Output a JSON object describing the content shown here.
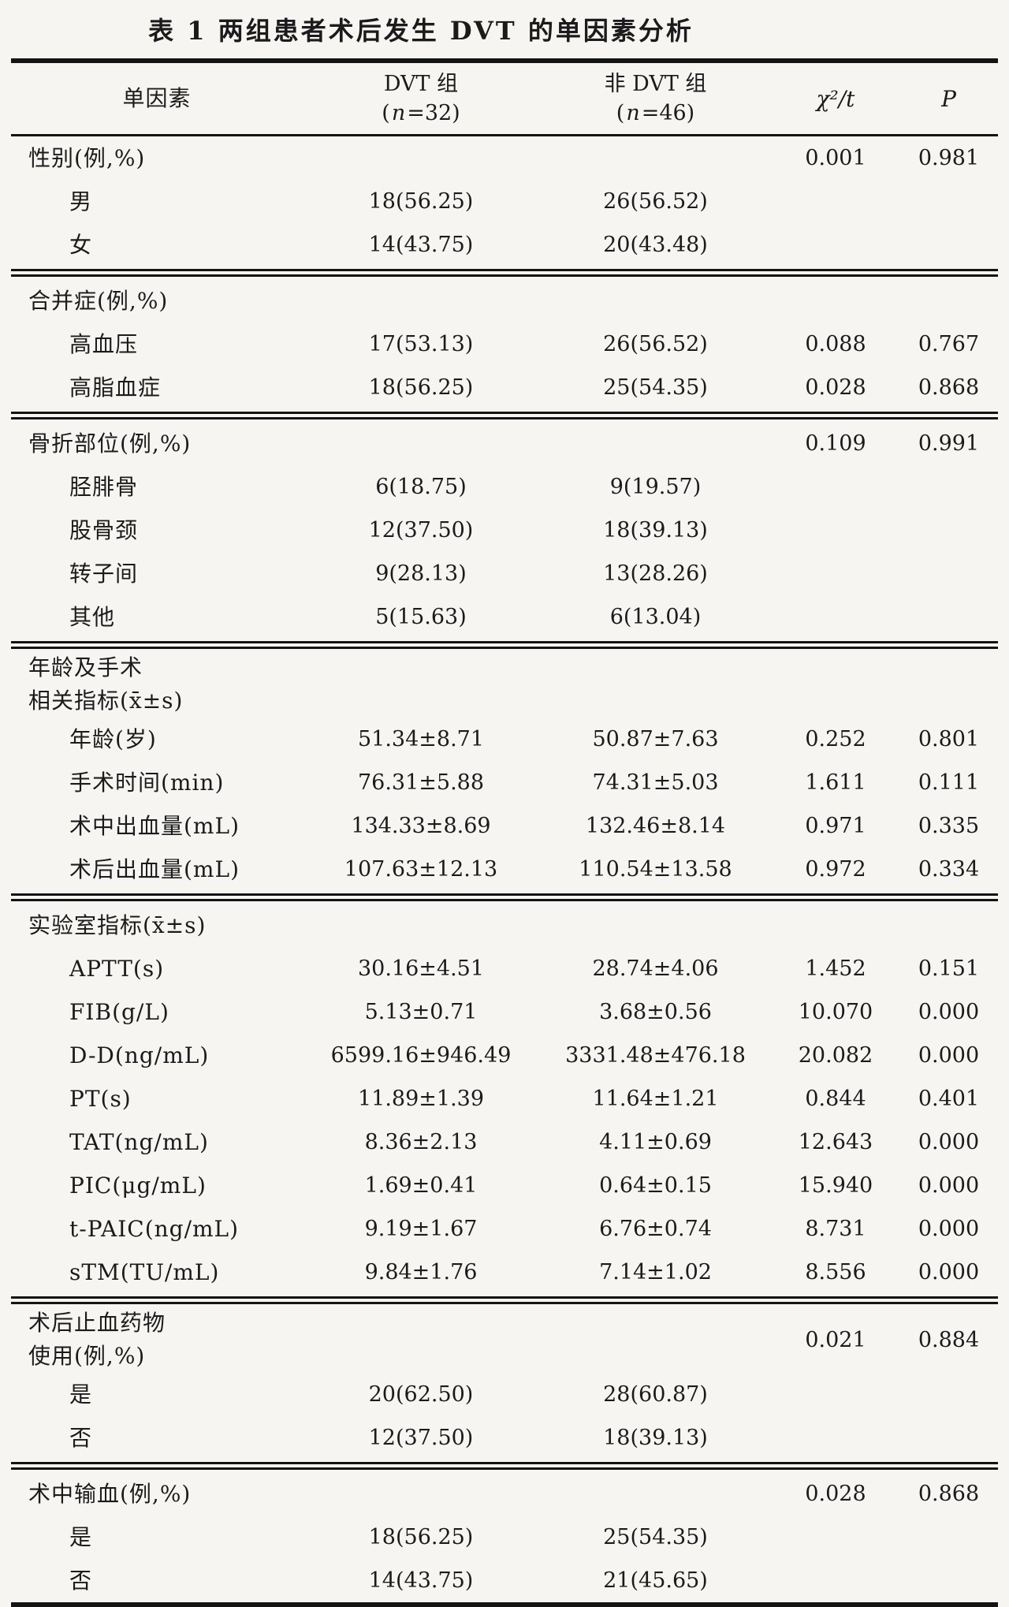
{
  "title": "表 1  两组患者术后发生 DVT 的单因素分析",
  "table": {
    "header": {
      "factor": "单因素",
      "dvt": {
        "line1": "DVT 组",
        "open": "(",
        "nvar": "n",
        "rest": "=32)"
      },
      "non_dvt": {
        "line1": "非 DVT 组",
        "open": "(",
        "nvar": "n",
        "rest": "=46)"
      },
      "chi_t": "χ²/t",
      "p": "P"
    },
    "sections": [
      {
        "label_lines": [
          "性别(例,%)"
        ],
        "chi": "0.001",
        "p": "0.981",
        "rows": [
          {
            "label": "男",
            "dvt": "18(56.25)",
            "non_dvt": "26(56.52)",
            "chi": "",
            "p": ""
          },
          {
            "label": "女",
            "dvt": "14(43.75)",
            "non_dvt": "20(43.48)",
            "chi": "",
            "p": ""
          }
        ]
      },
      {
        "label_lines": [
          "合并症(例,%)"
        ],
        "chi": "",
        "p": "",
        "rows": [
          {
            "label": "高血压",
            "dvt": "17(53.13)",
            "non_dvt": "26(56.52)",
            "chi": "0.088",
            "p": "0.767"
          },
          {
            "label": "高脂血症",
            "dvt": "18(56.25)",
            "non_dvt": "25(54.35)",
            "chi": "0.028",
            "p": "0.868"
          }
        ]
      },
      {
        "label_lines": [
          "骨折部位(例,%)"
        ],
        "chi": "0.109",
        "p": "0.991",
        "rows": [
          {
            "label": "胫腓骨",
            "dvt": "6(18.75)",
            "non_dvt": "9(19.57)",
            "chi": "",
            "p": ""
          },
          {
            "label": "股骨颈",
            "dvt": "12(37.50)",
            "non_dvt": "18(39.13)",
            "chi": "",
            "p": ""
          },
          {
            "label": "转子间",
            "dvt": "9(28.13)",
            "non_dvt": "13(28.26)",
            "chi": "",
            "p": ""
          },
          {
            "label": "其他",
            "dvt": "5(15.63)",
            "non_dvt": "6(13.04)",
            "chi": "",
            "p": ""
          }
        ]
      },
      {
        "label_lines": [
          "年龄及手术",
          "相关指标(x̄±s)"
        ],
        "chi": "",
        "p": "",
        "rows": [
          {
            "label": "年龄(岁)",
            "dvt": "51.34±8.71",
            "non_dvt": "50.87±7.63",
            "chi": "0.252",
            "p": "0.801"
          },
          {
            "label": "手术时间(min)",
            "dvt": "76.31±5.88",
            "non_dvt": "74.31±5.03",
            "chi": "1.611",
            "p": "0.111"
          },
          {
            "label": "术中出血量(mL)",
            "dvt": "134.33±8.69",
            "non_dvt": "132.46±8.14",
            "chi": "0.971",
            "p": "0.335"
          },
          {
            "label": "术后出血量(mL)",
            "dvt": "107.63±12.13",
            "non_dvt": "110.54±13.58",
            "chi": "0.972",
            "p": "0.334"
          }
        ]
      },
      {
        "label_lines": [
          "实验室指标(x̄±s)"
        ],
        "chi": "",
        "p": "",
        "rows": [
          {
            "label": "APTT(s)",
            "dvt": "30.16±4.51",
            "non_dvt": "28.74±4.06",
            "chi": "1.452",
            "p": "0.151"
          },
          {
            "label": "FIB(g/L)",
            "dvt": "5.13±0.71",
            "non_dvt": "3.68±0.56",
            "chi": "10.070",
            "p": "0.000"
          },
          {
            "label": "D-D(ng/mL)",
            "dvt": "6599.16±946.49",
            "non_dvt": "3331.48±476.18",
            "chi": "20.082",
            "p": "0.000"
          },
          {
            "label": "PT(s)",
            "dvt": "11.89±1.39",
            "non_dvt": "11.64±1.21",
            "chi": "0.844",
            "p": "0.401"
          },
          {
            "label": "TAT(ng/mL)",
            "dvt": "8.36±2.13",
            "non_dvt": "4.11±0.69",
            "chi": "12.643",
            "p": "0.000"
          },
          {
            "label": "PIC(μg/mL)",
            "dvt": "1.69±0.41",
            "non_dvt": "0.64±0.15",
            "chi": "15.940",
            "p": "0.000"
          },
          {
            "label": "t-PAIC(ng/mL)",
            "dvt": "9.19±1.67",
            "non_dvt": "6.76±0.74",
            "chi": "8.731",
            "p": "0.000"
          },
          {
            "label": "sTM(TU/mL)",
            "dvt": "9.84±1.76",
            "non_dvt": "7.14±1.02",
            "chi": "8.556",
            "p": "0.000"
          }
        ]
      },
      {
        "label_lines": [
          "术后止血药物",
          "使用(例,%)"
        ],
        "chi": "0.021",
        "p": "0.884",
        "rows": [
          {
            "label": "是",
            "dvt": "20(62.50)",
            "non_dvt": "28(60.87)",
            "chi": "",
            "p": ""
          },
          {
            "label": "否",
            "dvt": "12(37.50)",
            "non_dvt": "18(39.13)",
            "chi": "",
            "p": ""
          }
        ]
      },
      {
        "label_lines": [
          "术中输血(例,%)"
        ],
        "chi": "0.028",
        "p": "0.868",
        "rows": [
          {
            "label": "是",
            "dvt": "18(56.25)",
            "non_dvt": "25(54.35)",
            "chi": "",
            "p": ""
          },
          {
            "label": "否",
            "dvt": "14(43.75)",
            "non_dvt": "21(45.65)",
            "chi": "",
            "p": ""
          }
        ]
      }
    ]
  }
}
